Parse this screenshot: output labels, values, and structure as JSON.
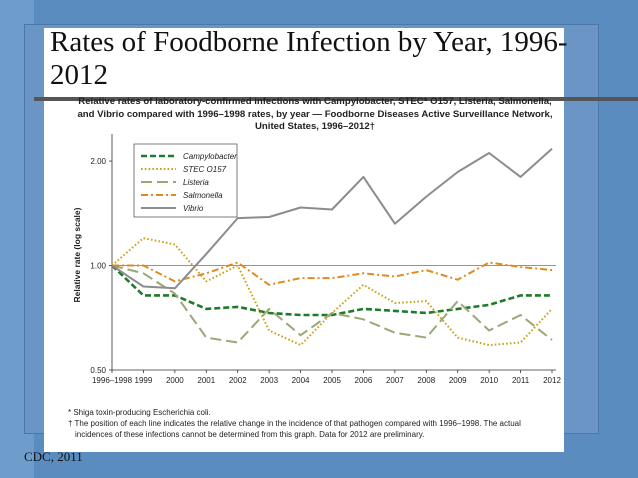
{
  "slide": {
    "title": "Rates of Foodborne Infection by Year, 1996-2012",
    "credit": "CDC, 2011"
  },
  "chart_data": {
    "type": "line",
    "caption": [
      "Relative rates of laboratory-confirmed infections with Campylobacter, STEC* O157, Listeria, Salmonella,",
      "and Vibrio compared with 1996–1998 rates, by year — Foodborne Diseases Active Surveillance Network,",
      "United States, 1996–2012†"
    ],
    "ylabel": "Relative rate (log scale)",
    "xlabel": "",
    "y_scale": "log",
    "ylim": [
      0.5,
      2.3
    ],
    "y_ticks": [
      "0.50",
      "1.00",
      "2.00"
    ],
    "categories": [
      "1996–1998",
      "1999",
      "2000",
      "2001",
      "2002",
      "2003",
      "2004",
      "2005",
      "2006",
      "2007",
      "2008",
      "2009",
      "2010",
      "2011",
      "2012"
    ],
    "reference_line": 1.0,
    "grid": false,
    "legend_position": "top-left",
    "series": [
      {
        "name": "Campylobacter",
        "style": "dashed",
        "color": "#1f7a2a",
        "values": [
          1.0,
          0.82,
          0.82,
          0.75,
          0.76,
          0.73,
          0.72,
          0.72,
          0.75,
          0.74,
          0.73,
          0.75,
          0.77,
          0.82,
          0.82
        ]
      },
      {
        "name": "STEC O157",
        "style": "dotted",
        "color": "#c8a21a",
        "values": [
          1.0,
          1.2,
          1.15,
          0.9,
          1.0,
          0.65,
          0.59,
          0.73,
          0.88,
          0.78,
          0.79,
          0.62,
          0.59,
          0.6,
          0.75
        ]
      },
      {
        "name": "Listeria",
        "style": "longdash",
        "color": "#9aa776",
        "values": [
          1.0,
          0.95,
          0.83,
          0.62,
          0.6,
          0.75,
          0.63,
          0.73,
          0.7,
          0.64,
          0.62,
          0.79,
          0.65,
          0.72,
          0.61
        ]
      },
      {
        "name": "Salmonella",
        "style": "dashdot",
        "color": "#e08a1e",
        "values": [
          1.0,
          1.0,
          0.9,
          0.95,
          1.02,
          0.88,
          0.92,
          0.92,
          0.95,
          0.93,
          0.97,
          0.91,
          1.02,
          0.99,
          0.97
        ]
      },
      {
        "name": "Vibrio",
        "style": "solid",
        "color": "#8c8c8c",
        "values": [
          1.0,
          0.87,
          0.86,
          1.08,
          1.37,
          1.38,
          1.47,
          1.45,
          1.8,
          1.32,
          1.58,
          1.86,
          2.11,
          1.8,
          2.17
        ]
      }
    ],
    "footnotes": [
      "* Shiga toxin-producing Escherichia coli.",
      "† The position of each line indicates the relative change in the incidence of that pathogen compared with 1996–1998. The actual",
      "incidences of these infections cannot be determined from this graph. Data for 2012 are preliminary."
    ]
  }
}
